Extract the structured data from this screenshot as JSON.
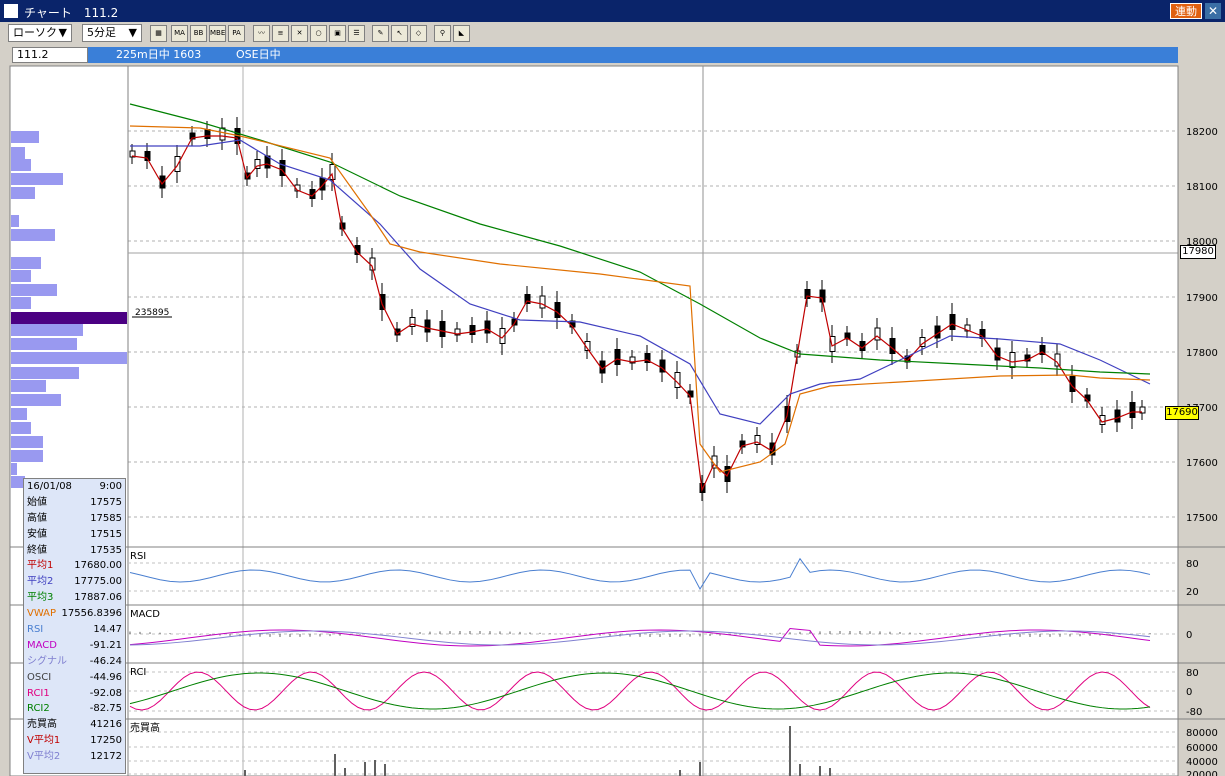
{
  "window": {
    "title": "チャート　111.2",
    "link_label": "連動",
    "close_glyph": "✕"
  },
  "toolbar": {
    "chart_type": "ローソク",
    "interval": "5分足",
    "buttons": [
      "MA",
      "BB",
      "MBE",
      "PA"
    ]
  },
  "infobar": {
    "symbol_code": "111.2",
    "instrument": "225m日中 1603",
    "market": "OSE日中"
  },
  "price_axis": {
    "ticks": [
      "18200",
      "18100",
      "18000",
      "17900",
      "17800",
      "17700",
      "17600",
      "17500"
    ],
    "current_price": "17690",
    "crosshair_price": "17980"
  },
  "volume_profile_label": "235895",
  "indicator_panels": {
    "rsi": {
      "label": "RSI",
      "ticks": [
        "80",
        "20"
      ]
    },
    "macd": {
      "label": "MACD",
      "ticks": [
        "0"
      ]
    },
    "rci": {
      "label": "RCI",
      "ticks": [
        "80",
        "0",
        "-80"
      ]
    },
    "volume": {
      "label": "売買高",
      "ticks": [
        "80000",
        "60000",
        "40000",
        "20000"
      ]
    }
  },
  "detail_box": {
    "date": "16/01/08",
    "time": "9:00",
    "rows": [
      {
        "label": "始値",
        "value": "17575",
        "color": "#000000"
      },
      {
        "label": "高値",
        "value": "17585",
        "color": "#000000"
      },
      {
        "label": "安値",
        "value": "17515",
        "color": "#000000"
      },
      {
        "label": "終値",
        "value": "17535",
        "color": "#000000"
      },
      {
        "label": "平均1",
        "value": "17680.00",
        "color": "#c00000"
      },
      {
        "label": "平均2",
        "value": "17775.00",
        "color": "#4040c0"
      },
      {
        "label": "平均3",
        "value": "17887.06",
        "color": "#008000"
      },
      {
        "label": "VWAP",
        "value": "17556.8396",
        "color": "#e07000"
      },
      {
        "label": "RSI",
        "value": "14.47",
        "color": "#4a7fd0"
      },
      {
        "label": "MACD",
        "value": "-91.21",
        "color": "#c000c0"
      },
      {
        "label": "シグナル",
        "value": "-46.24",
        "color": "#8080d0"
      },
      {
        "label": "OSCI",
        "value": "-44.96",
        "color": "#404040"
      },
      {
        "label": "RCI1",
        "value": "-92.08",
        "color": "#e00080"
      },
      {
        "label": "RCI2",
        "value": "-82.75",
        "color": "#008000"
      },
      {
        "label": "売買高",
        "value": "41216",
        "color": "#000000"
      },
      {
        "label": "V平均1",
        "value": "17250",
        "color": "#c00000"
      },
      {
        "label": "V平均2",
        "value": "12172",
        "color": "#8080d0"
      }
    ]
  },
  "colors": {
    "ma1": "#c00000",
    "ma2": "#4040c0",
    "ma3": "#008000",
    "vwap": "#e07000",
    "rsi": "#4a7fd0",
    "macd": "#c000c0",
    "signal": "#8080d0",
    "rci1": "#e00080",
    "rci2": "#008000",
    "volume_profile": "#9999f0",
    "volume_profile_peak": "#4b0082",
    "title_bar": "#0a246a",
    "instrument_bar": "#3a7fd8"
  }
}
